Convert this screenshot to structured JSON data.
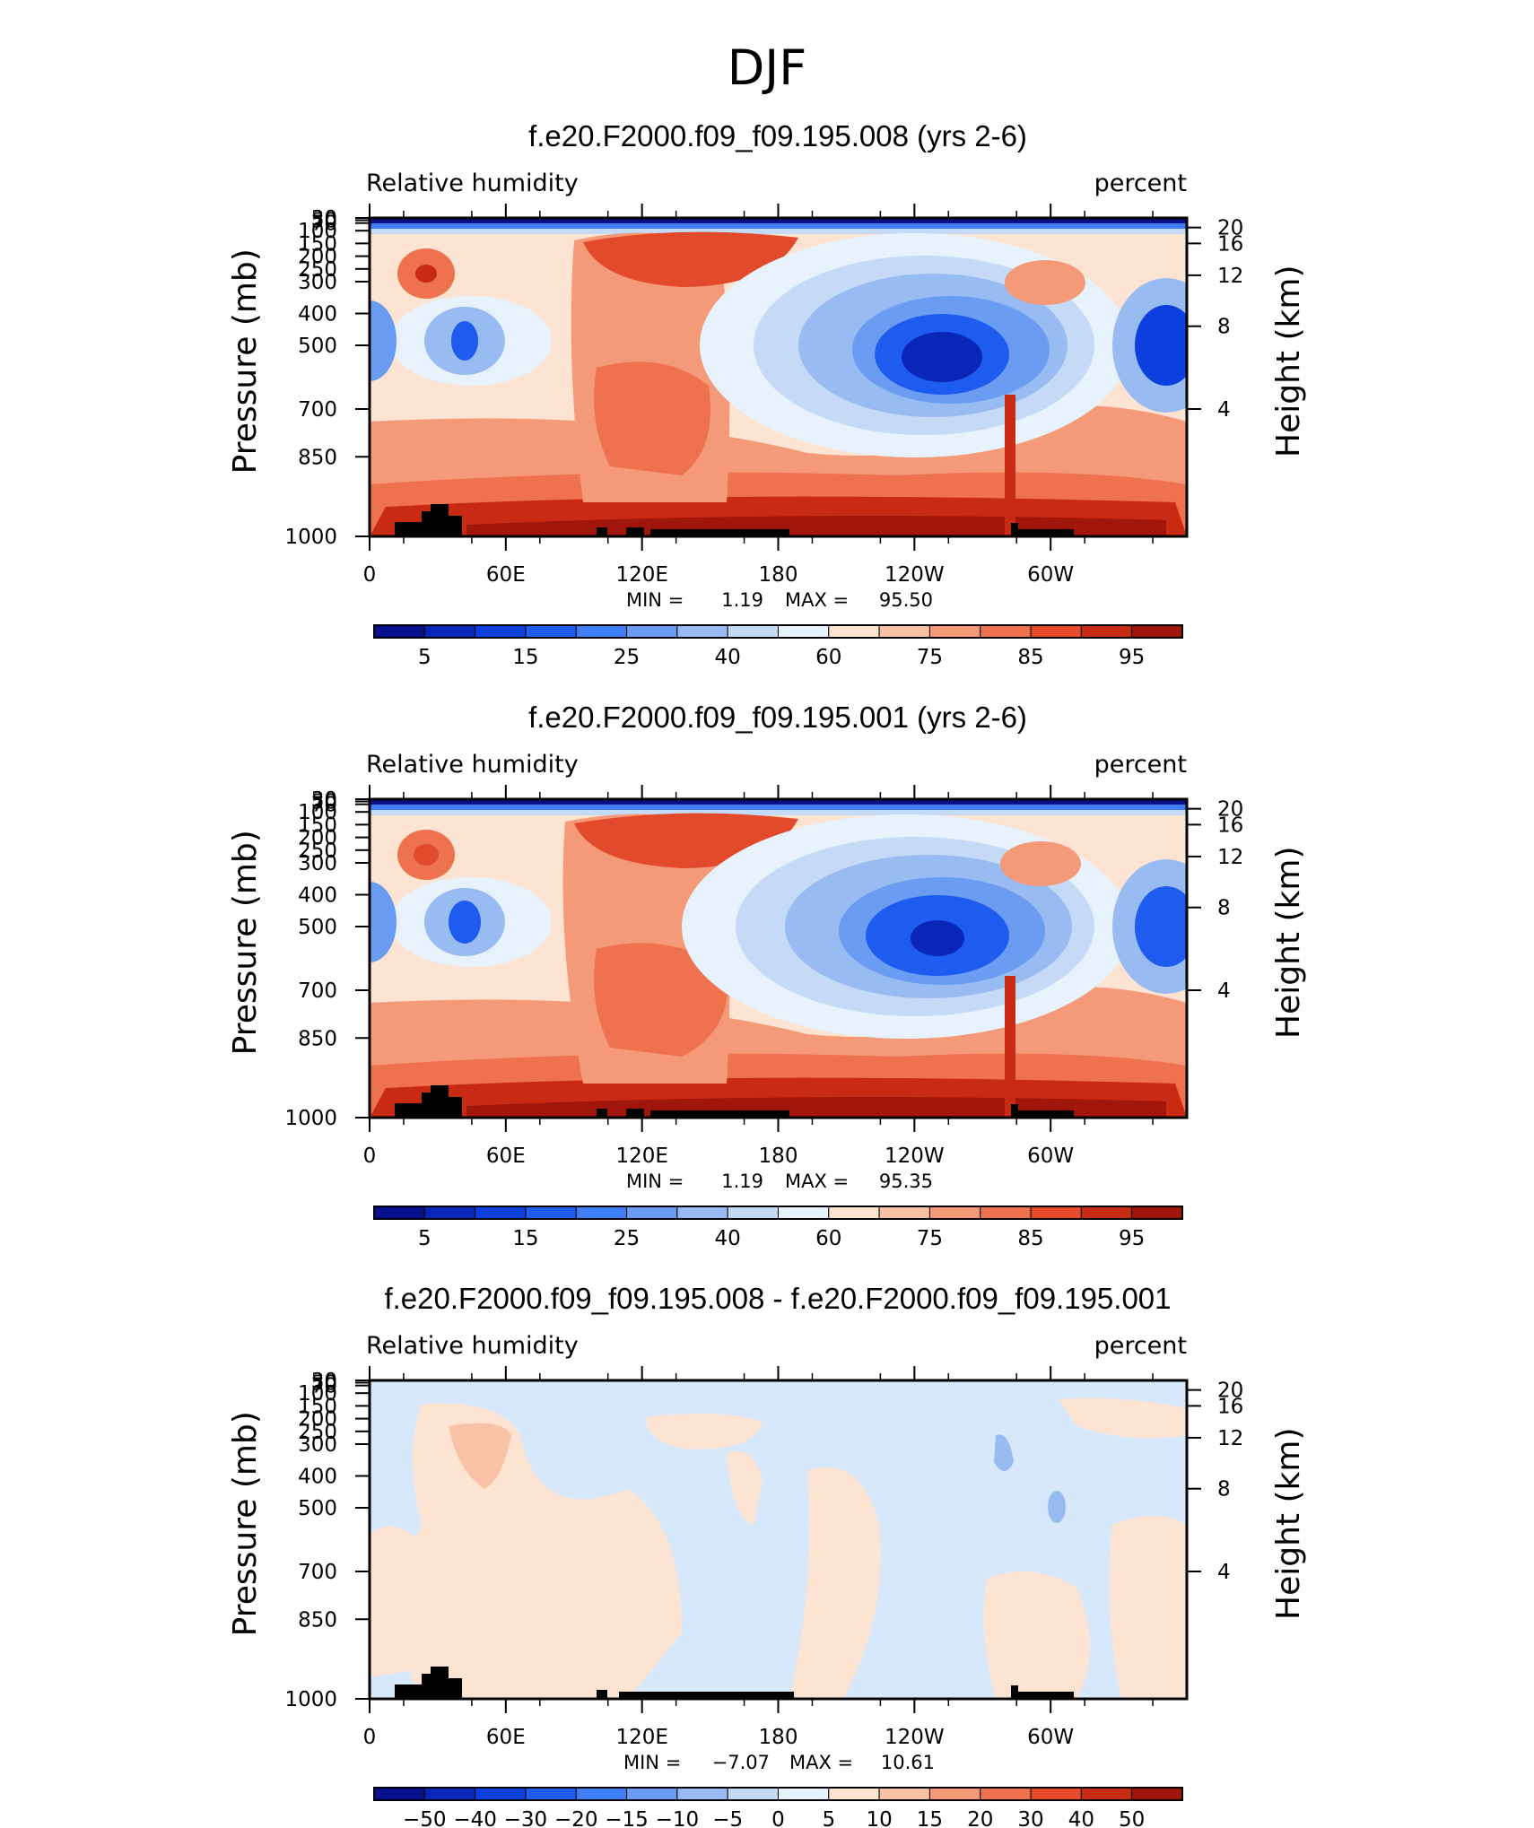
{
  "figure_title": "DJF",
  "chart_data": [
    {
      "type": "contour",
      "title": "f.e20.F2000.f09_f09.195.008 (yrs 2-6)",
      "left_label": "Relative humidity",
      "right_label": "percent",
      "ylabel": "Pressure (mb)",
      "ylabel_right": "Height (km)",
      "x_ticks": [
        "0",
        "60E",
        "120E",
        "180",
        "120W",
        "60W"
      ],
      "y_ticks": [
        "30",
        "50",
        "70",
        "100",
        "150",
        "200",
        "250",
        "300",
        "400",
        "500",
        "700",
        "850",
        "1000"
      ],
      "right_ticks": [
        "20",
        "16",
        "12",
        "8",
        "4"
      ],
      "min_label": "MIN =",
      "min_value": "1.19",
      "max_label": "MAX =",
      "max_value": "95.50",
      "colorbar_labels": [
        "5",
        "15",
        "25",
        "40",
        "60",
        "75",
        "85",
        "95"
      ],
      "colorbar_levels": [
        5,
        10,
        15,
        20,
        25,
        30,
        40,
        50,
        60,
        65,
        70,
        75,
        80,
        85,
        90,
        95
      ]
    },
    {
      "type": "contour",
      "title": "f.e20.F2000.f09_f09.195.001 (yrs 2-6)",
      "left_label": "Relative humidity",
      "right_label": "percent",
      "ylabel": "Pressure (mb)",
      "ylabel_right": "Height (km)",
      "x_ticks": [
        "0",
        "60E",
        "120E",
        "180",
        "120W",
        "60W"
      ],
      "y_ticks": [
        "30",
        "50",
        "70",
        "100",
        "150",
        "200",
        "250",
        "300",
        "400",
        "500",
        "700",
        "850",
        "1000"
      ],
      "right_ticks": [
        "20",
        "16",
        "12",
        "8",
        "4"
      ],
      "min_label": "MIN =",
      "min_value": "1.19",
      "max_label": "MAX =",
      "max_value": "95.35",
      "colorbar_labels": [
        "5",
        "15",
        "25",
        "40",
        "60",
        "75",
        "85",
        "95"
      ],
      "colorbar_levels": [
        5,
        10,
        15,
        20,
        25,
        30,
        40,
        50,
        60,
        65,
        70,
        75,
        80,
        85,
        90,
        95
      ]
    },
    {
      "type": "contour",
      "title": "f.e20.F2000.f09_f09.195.008 - f.e20.F2000.f09_f09.195.001",
      "left_label": "Relative humidity",
      "right_label": "percent",
      "ylabel": "Pressure (mb)",
      "ylabel_right": "Height (km)",
      "x_ticks": [
        "0",
        "60E",
        "120E",
        "180",
        "120W",
        "60W"
      ],
      "y_ticks": [
        "30",
        "50",
        "70",
        "100",
        "150",
        "200",
        "250",
        "300",
        "400",
        "500",
        "700",
        "850",
        "1000"
      ],
      "right_ticks": [
        "20",
        "16",
        "12",
        "8",
        "4"
      ],
      "min_label": "MIN =",
      "min_value": "−7.07",
      "max_label": "MAX =",
      "max_value": "10.61",
      "colorbar_labels": [
        "−50",
        "−40",
        "−30",
        "−20",
        "−15",
        "−10",
        "−5",
        "0",
        "5",
        "10",
        "15",
        "20",
        "30",
        "40",
        "50"
      ],
      "colorbar_levels": [
        -50,
        -40,
        -30,
        -20,
        -15,
        -10,
        -5,
        0,
        5,
        10,
        15,
        20,
        30,
        40,
        50
      ]
    }
  ],
  "colors": {
    "palette": [
      "#08108a",
      "#0a26b8",
      "#0c3fe0",
      "#1e5cf0",
      "#3f7ef2",
      "#6a9cf2",
      "#98bbf2",
      "#c4daf6",
      "#e8f2fc",
      "#fde4d2",
      "#f9c1a5",
      "#f59a78",
      "#ef724f",
      "#e24a2b",
      "#c82a14",
      "#a0160b",
      "#800000"
    ],
    "mountain": "#000000"
  }
}
